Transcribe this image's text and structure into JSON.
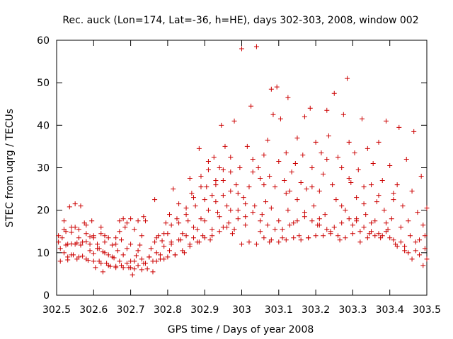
{
  "chart_data": {
    "type": "scatter",
    "title": "Rec. auck (Lon=174, Lat=-36, h=HE), days 302-303, 2008, window 002",
    "xlabel": "GPS time / Days of year 2008",
    "ylabel": "STEC from uqrg / TECUs",
    "xlim": [
      302.5,
      303.5
    ],
    "ylim": [
      0,
      60
    ],
    "xticks": [
      302.5,
      302.6,
      302.7,
      302.8,
      302.9,
      303.0,
      303.1,
      303.2,
      303.3,
      303.4,
      303.5
    ],
    "xtick_labels": [
      "302.5",
      "302.6",
      "302.7",
      "302.8",
      "302.9",
      "303",
      "303.1",
      "303.2",
      "303.3",
      "303.4",
      "303.5"
    ],
    "yticks": [
      0,
      10,
      20,
      30,
      40,
      50,
      60
    ],
    "ytick_labels": [
      "0",
      "10",
      "20",
      "30",
      "40",
      "50",
      "60"
    ],
    "grid": false,
    "legend": "none",
    "marker": "plus",
    "color": "#cc0000",
    "points": [
      [
        302.505,
        14.0
      ],
      [
        302.505,
        12.5
      ],
      [
        302.51,
        8.0
      ],
      [
        302.515,
        13.5
      ],
      [
        302.52,
        17.5
      ],
      [
        302.525,
        15.0
      ],
      [
        302.525,
        11.8
      ],
      [
        302.53,
        8.3
      ],
      [
        302.53,
        9.0
      ],
      [
        302.535,
        20.8
      ],
      [
        302.54,
        14.8
      ],
      [
        302.54,
        12.1
      ],
      [
        302.545,
        9.5
      ],
      [
        302.55,
        21.5
      ],
      [
        302.55,
        16.0
      ],
      [
        302.555,
        12.3
      ],
      [
        302.555,
        8.5
      ],
      [
        302.56,
        15.5
      ],
      [
        302.565,
        21.0
      ],
      [
        302.565,
        11.8
      ],
      [
        302.57,
        9.2
      ],
      [
        302.575,
        17.0
      ],
      [
        302.58,
        14.5
      ],
      [
        302.58,
        12.6
      ],
      [
        302.585,
        8.2
      ],
      [
        302.59,
        10.5
      ],
      [
        302.59,
        13.8
      ],
      [
        302.595,
        17.5
      ],
      [
        302.6,
        14.0
      ],
      [
        302.6,
        9.8
      ],
      [
        302.605,
        6.5
      ],
      [
        302.61,
        12.0
      ],
      [
        302.615,
        8.0
      ],
      [
        302.615,
        11.0
      ],
      [
        302.62,
        14.5
      ],
      [
        302.625,
        5.5
      ],
      [
        302.625,
        10.2
      ],
      [
        302.63,
        12.5
      ],
      [
        302.635,
        7.5
      ],
      [
        302.64,
        9.5
      ],
      [
        302.64,
        13.5
      ],
      [
        302.645,
        6.8
      ],
      [
        302.65,
        11.8
      ],
      [
        302.655,
        8.8
      ],
      [
        302.66,
        12.0
      ],
      [
        302.66,
        6.5
      ],
      [
        302.665,
        10.5
      ],
      [
        302.67,
        17.5
      ],
      [
        302.675,
        7.0
      ],
      [
        302.675,
        13.0
      ],
      [
        302.68,
        9.5
      ],
      [
        302.685,
        16.0
      ],
      [
        302.69,
        11.0
      ],
      [
        302.695,
        6.5
      ],
      [
        302.7,
        8.0
      ],
      [
        302.7,
        12.0
      ],
      [
        302.705,
        4.8
      ],
      [
        302.71,
        6.2
      ],
      [
        302.715,
        9.3
      ],
      [
        302.72,
        10.5
      ],
      [
        302.725,
        11.8
      ],
      [
        302.73,
        6.0
      ],
      [
        302.735,
        18.5
      ],
      [
        302.735,
        7.5
      ],
      [
        302.74,
        17.5
      ],
      [
        302.745,
        6.2
      ],
      [
        302.75,
        9.0
      ],
      [
        302.755,
        11.0
      ],
      [
        302.76,
        5.5
      ],
      [
        302.765,
        12.5
      ],
      [
        302.765,
        22.5
      ],
      [
        302.77,
        8.0
      ],
      [
        302.775,
        14.0
      ],
      [
        302.78,
        9.5
      ],
      [
        302.785,
        12.8
      ],
      [
        302.79,
        8.5
      ],
      [
        302.795,
        17.0
      ],
      [
        302.8,
        14.5
      ],
      [
        302.805,
        10.5
      ],
      [
        302.805,
        19.0
      ],
      [
        302.81,
        12.5
      ],
      [
        302.815,
        25.0
      ],
      [
        302.82,
        9.5
      ],
      [
        302.825,
        18.0
      ],
      [
        302.83,
        21.5
      ],
      [
        302.835,
        13.0
      ],
      [
        302.84,
        14.5
      ],
      [
        302.845,
        10.0
      ],
      [
        302.85,
        20.5
      ],
      [
        302.855,
        17.5
      ],
      [
        302.86,
        27.5
      ],
      [
        302.86,
        12.0
      ],
      [
        302.865,
        24.0
      ],
      [
        302.87,
        13.5
      ],
      [
        302.875,
        21.0
      ],
      [
        302.88,
        15.5
      ],
      [
        302.885,
        34.5
      ],
      [
        302.885,
        12.5
      ],
      [
        302.89,
        28.0
      ],
      [
        302.895,
        14.0
      ],
      [
        302.9,
        22.5
      ],
      [
        302.9,
        17.5
      ],
      [
        302.905,
        25.5
      ],
      [
        302.91,
        31.5
      ],
      [
        302.915,
        13.0
      ],
      [
        302.92,
        15.5
      ],
      [
        302.92,
        23.5
      ],
      [
        302.925,
        32.5
      ],
      [
        302.93,
        26.0
      ],
      [
        302.935,
        19.5
      ],
      [
        302.94,
        18.5
      ],
      [
        302.94,
        30.0
      ],
      [
        302.945,
        40.0
      ],
      [
        302.95,
        16.0
      ],
      [
        302.95,
        29.5
      ],
      [
        302.955,
        35.0
      ],
      [
        302.96,
        21.0
      ],
      [
        302.965,
        17.0
      ],
      [
        302.97,
        32.5
      ],
      [
        302.97,
        24.5
      ],
      [
        302.975,
        14.5
      ],
      [
        302.98,
        41.0
      ],
      [
        302.985,
        26.0
      ],
      [
        302.99,
        18.0
      ],
      [
        302.995,
        30.0
      ],
      [
        303.0,
        58.0
      ],
      [
        303.005,
        23.0
      ],
      [
        303.01,
        16.5
      ],
      [
        303.015,
        35.0
      ],
      [
        303.02,
        25.5
      ],
      [
        303.025,
        44.5
      ],
      [
        303.03,
        29.0
      ],
      [
        303.035,
        21.0
      ],
      [
        303.04,
        58.5
      ],
      [
        303.045,
        30.0
      ],
      [
        303.05,
        15.0
      ],
      [
        303.055,
        19.0
      ],
      [
        303.06,
        33.0
      ],
      [
        303.065,
        22.0
      ],
      [
        303.07,
        36.5
      ],
      [
        303.075,
        28.0
      ],
      [
        303.075,
        12.5
      ],
      [
        303.08,
        48.5
      ],
      [
        303.085,
        42.5
      ],
      [
        303.09,
        25.5
      ],
      [
        303.095,
        49.0
      ],
      [
        303.1,
        31.5
      ],
      [
        303.1,
        17.5
      ],
      [
        303.105,
        41.5
      ],
      [
        303.11,
        13.5
      ],
      [
        303.115,
        27.0
      ],
      [
        303.12,
        33.5
      ],
      [
        303.125,
        20.0
      ],
      [
        303.125,
        46.5
      ],
      [
        303.13,
        24.5
      ],
      [
        303.135,
        29.0
      ],
      [
        303.14,
        17.0
      ],
      [
        303.145,
        31.0
      ],
      [
        303.15,
        22.5
      ],
      [
        303.155,
        14.0
      ],
      [
        303.16,
        26.5
      ],
      [
        303.165,
        33.0
      ],
      [
        303.17,
        19.5
      ],
      [
        303.175,
        25.0
      ],
      [
        303.18,
        13.5
      ],
      [
        303.185,
        44.0
      ],
      [
        303.19,
        30.0
      ],
      [
        303.195,
        21.0
      ],
      [
        303.2,
        36.0
      ],
      [
        303.205,
        16.5
      ],
      [
        303.21,
        24.5
      ],
      [
        303.215,
        33.5
      ],
      [
        303.22,
        28.5
      ],
      [
        303.225,
        19.0
      ],
      [
        303.23,
        43.5
      ],
      [
        303.235,
        37.5
      ],
      [
        303.24,
        15.0
      ],
      [
        303.245,
        26.0
      ],
      [
        303.25,
        47.5
      ],
      [
        303.255,
        22.5
      ],
      [
        303.26,
        32.5
      ],
      [
        303.265,
        13.0
      ],
      [
        303.27,
        30.0
      ],
      [
        303.275,
        42.5
      ],
      [
        303.28,
        20.0
      ],
      [
        303.285,
        51.0
      ],
      [
        303.29,
        36.0
      ],
      [
        303.295,
        26.5
      ],
      [
        303.3,
        16.5
      ],
      [
        303.305,
        33.5
      ],
      [
        303.31,
        23.0
      ],
      [
        303.315,
        29.5
      ],
      [
        303.32,
        12.5
      ],
      [
        303.325,
        41.5
      ],
      [
        303.33,
        25.5
      ],
      [
        303.335,
        19.0
      ],
      [
        303.34,
        34.5
      ],
      [
        303.345,
        14.5
      ],
      [
        303.35,
        26.0
      ],
      [
        303.355,
        31.0
      ],
      [
        303.36,
        17.5
      ],
      [
        303.365,
        22.0
      ],
      [
        303.37,
        36.0
      ],
      [
        303.375,
        13.5
      ],
      [
        303.38,
        27.0
      ],
      [
        303.385,
        20.0
      ],
      [
        303.39,
        41.0
      ],
      [
        303.395,
        15.5
      ],
      [
        303.4,
        30.5
      ],
      [
        303.405,
        18.0
      ],
      [
        303.41,
        24.0
      ],
      [
        303.415,
        12.0
      ],
      [
        303.42,
        26.0
      ],
      [
        303.425,
        39.5
      ],
      [
        303.43,
        16.0
      ],
      [
        303.435,
        21.0
      ],
      [
        303.44,
        11.5
      ],
      [
        303.445,
        32.0
      ],
      [
        303.45,
        17.5
      ],
      [
        303.455,
        14.0
      ],
      [
        303.46,
        24.5
      ],
      [
        303.465,
        38.5
      ],
      [
        303.47,
        10.5
      ],
      [
        303.475,
        19.5
      ],
      [
        303.48,
        13.0
      ],
      [
        303.485,
        28.0
      ],
      [
        303.49,
        16.5
      ],
      [
        303.495,
        11.0
      ],
      [
        303.5,
        20.5
      ],
      [
        303.5,
        8.5
      ],
      [
        303.45,
        10.0
      ],
      [
        303.46,
        8.5
      ],
      [
        303.47,
        12.5
      ],
      [
        303.48,
        9.5
      ],
      [
        303.49,
        7.0
      ],
      [
        303.495,
        14.0
      ],
      [
        303.42,
        11.5
      ],
      [
        303.43,
        12.5
      ],
      [
        303.44,
        10.5
      ],
      [
        303.41,
        13.0
      ],
      [
        303.4,
        13.5
      ],
      [
        303.38,
        14.0
      ],
      [
        303.36,
        14.0
      ],
      [
        303.34,
        13.5
      ],
      [
        303.32,
        15.0
      ],
      [
        303.3,
        14.5
      ],
      [
        303.28,
        13.5
      ],
      [
        303.26,
        14.0
      ],
      [
        303.24,
        14.5
      ],
      [
        303.22,
        14.0
      ],
      [
        303.2,
        14.0
      ],
      [
        303.18,
        13.5
      ],
      [
        303.16,
        13.0
      ],
      [
        303.14,
        13.5
      ],
      [
        303.12,
        13.0
      ],
      [
        303.1,
        12.5
      ],
      [
        303.08,
        13.0
      ],
      [
        303.06,
        13.5
      ],
      [
        303.04,
        12.0
      ],
      [
        303.02,
        12.5
      ],
      [
        303.0,
        12.0
      ],
      [
        302.98,
        15.5
      ],
      [
        302.96,
        16.0
      ],
      [
        302.94,
        15.0
      ],
      [
        302.92,
        14.0
      ],
      [
        302.9,
        13.5
      ],
      [
        302.88,
        12.5
      ],
      [
        302.86,
        11.5
      ],
      [
        302.84,
        10.5
      ],
      [
        302.82,
        9.5
      ],
      [
        302.8,
        9.0
      ],
      [
        302.78,
        8.5
      ],
      [
        302.76,
        8.0
      ],
      [
        302.74,
        7.5
      ],
      [
        302.72,
        7.0
      ],
      [
        302.7,
        6.5
      ],
      [
        302.68,
        6.5
      ],
      [
        302.66,
        6.8
      ],
      [
        302.64,
        7.0
      ],
      [
        302.62,
        7.5
      ],
      [
        302.6,
        8.0
      ],
      [
        302.58,
        8.5
      ],
      [
        302.56,
        9.0
      ],
      [
        302.54,
        9.5
      ],
      [
        302.52,
        10.0
      ],
      [
        302.51,
        11.0
      ],
      [
        303.06,
        26.0
      ],
      [
        303.08,
        20.5
      ],
      [
        303.12,
        24.0
      ],
      [
        303.15,
        37.0
      ],
      [
        303.17,
        42.0
      ],
      [
        303.19,
        25.5
      ],
      [
        303.21,
        18.0
      ],
      [
        303.23,
        32.0
      ],
      [
        303.27,
        21.0
      ],
      [
        303.29,
        27.5
      ],
      [
        303.31,
        18.0
      ],
      [
        303.33,
        21.5
      ],
      [
        303.35,
        17.0
      ],
      [
        303.37,
        23.5
      ],
      [
        303.39,
        17.0
      ],
      [
        303.41,
        22.5
      ],
      [
        302.93,
        22.0
      ],
      [
        302.95,
        27.0
      ],
      [
        302.97,
        20.0
      ],
      [
        302.99,
        24.0
      ],
      [
        303.01,
        21.5
      ],
      [
        303.03,
        19.5
      ],
      [
        303.05,
        17.5
      ],
      [
        303.07,
        16.5
      ],
      [
        303.09,
        15.5
      ],
      [
        303.11,
        15.5
      ],
      [
        303.13,
        16.5
      ],
      [
        303.15,
        17.5
      ],
      [
        303.17,
        18.5
      ],
      [
        303.19,
        17.5
      ],
      [
        303.21,
        16.5
      ],
      [
        303.23,
        15.5
      ],
      [
        303.25,
        16.0
      ],
      [
        303.27,
        17.0
      ],
      [
        303.29,
        18.0
      ],
      [
        303.31,
        17.5
      ],
      [
        303.33,
        16.0
      ],
      [
        303.35,
        15.0
      ],
      [
        303.37,
        14.5
      ],
      [
        303.39,
        15.0
      ],
      [
        302.87,
        16.0
      ],
      [
        302.89,
        18.0
      ],
      [
        302.91,
        20.0
      ],
      [
        302.85,
        14.0
      ],
      [
        302.83,
        13.0
      ],
      [
        302.81,
        12.0
      ],
      [
        302.79,
        11.5
      ],
      [
        302.77,
        10.0
      ],
      [
        302.75,
        9.0
      ],
      [
        302.73,
        8.5
      ],
      [
        302.71,
        8.0
      ],
      [
        302.69,
        7.5
      ],
      [
        302.67,
        8.0
      ],
      [
        302.65,
        9.0
      ],
      [
        302.63,
        10.0
      ],
      [
        302.61,
        11.0
      ],
      [
        302.59,
        12.0
      ],
      [
        302.57,
        12.5
      ],
      [
        302.55,
        12.0
      ],
      [
        302.53,
        12.0
      ],
      [
        302.7,
        18.0
      ],
      [
        302.71,
        15.5
      ],
      [
        302.72,
        17.5
      ],
      [
        302.73,
        14.0
      ],
      [
        302.68,
        18.0
      ],
      [
        302.69,
        17.0
      ],
      [
        302.66,
        13.5
      ],
      [
        302.67,
        15.0
      ],
      [
        302.62,
        16.0
      ],
      [
        302.63,
        14.0
      ],
      [
        302.6,
        13.5
      ],
      [
        302.58,
        16.5
      ],
      [
        302.56,
        13.5
      ],
      [
        302.54,
        16.0
      ],
      [
        302.52,
        15.5
      ],
      [
        302.77,
        13.5
      ],
      [
        302.79,
        14.5
      ],
      [
        302.81,
        16.5
      ],
      [
        302.83,
        17.0
      ],
      [
        302.85,
        19.0
      ],
      [
        302.87,
        23.0
      ],
      [
        302.89,
        25.5
      ],
      [
        302.91,
        29.5
      ],
      [
        302.93,
        27.0
      ],
      [
        302.95,
        23.5
      ],
      [
        302.97,
        29.0
      ],
      [
        302.99,
        20.0
      ],
      [
        303.01,
        18.5
      ],
      [
        303.03,
        32.0
      ],
      [
        303.05,
        27.5
      ]
    ]
  }
}
